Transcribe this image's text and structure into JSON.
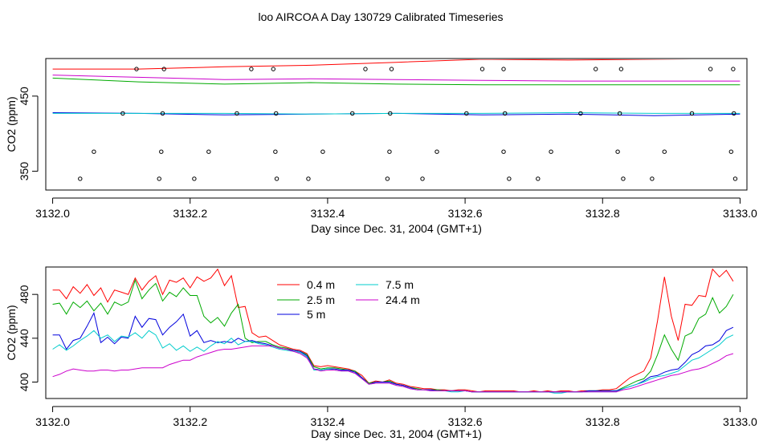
{
  "figure": {
    "title": "loo AIRCOA A  Day 130729  Calibrated Timeseries"
  },
  "chart_data": [
    {
      "type": "scatter",
      "xlabel": "Day since Dec. 31, 2004 (GMT+1)",
      "ylabel": "CO2 (ppm)",
      "xlim": [
        3131.99,
        3133.01
      ],
      "ylim": [
        325,
        500
      ],
      "xticks": [
        3132.0,
        3132.2,
        3132.4,
        3132.6,
        3132.8,
        3133.0
      ],
      "xtick_labels": [
        "3132.0",
        "3132.2",
        "3132.4",
        "3132.6",
        "3132.8",
        "3133.0"
      ],
      "yticks": [
        350,
        450
      ],
      "ytick_labels": [
        "350",
        "450"
      ],
      "x": [
        3132.0,
        3132.125,
        3132.25,
        3132.375,
        3132.5,
        3132.625,
        3132.75,
        3132.875,
        3133.0
      ],
      "series": [
        {
          "color": "#ff0000",
          "values": [
            486,
            486,
            489,
            491,
            495,
            499,
            498,
            499,
            500
          ]
        },
        {
          "color": "#00aa00",
          "values": [
            474,
            469,
            466,
            468,
            466,
            465,
            465,
            465,
            465
          ]
        },
        {
          "color": "#0000dd",
          "values": [
            428,
            427,
            425,
            426,
            427,
            425,
            426,
            424,
            426
          ]
        },
        {
          "color": "#00cccc",
          "values": [
            427,
            427,
            427,
            426,
            427,
            427,
            428,
            427,
            427
          ]
        },
        {
          "color": "#cc00cc",
          "values": [
            478,
            475,
            472,
            473,
            472,
            471,
            470,
            470,
            470
          ]
        }
      ],
      "points": [
        {
          "x": 3132.122,
          "y": 486
        },
        {
          "x": 3132.162,
          "y": 486
        },
        {
          "x": 3132.289,
          "y": 486
        },
        {
          "x": 3132.321,
          "y": 486
        },
        {
          "x": 3132.455,
          "y": 486
        },
        {
          "x": 3132.493,
          "y": 486
        },
        {
          "x": 3132.625,
          "y": 486
        },
        {
          "x": 3132.656,
          "y": 486
        },
        {
          "x": 3132.79,
          "y": 486
        },
        {
          "x": 3132.827,
          "y": 486
        },
        {
          "x": 3132.957,
          "y": 486
        },
        {
          "x": 3132.99,
          "y": 486
        },
        {
          "x": 3132.102,
          "y": 427
        },
        {
          "x": 3132.16,
          "y": 427
        },
        {
          "x": 3132.268,
          "y": 427
        },
        {
          "x": 3132.325,
          "y": 427
        },
        {
          "x": 3132.436,
          "y": 427
        },
        {
          "x": 3132.491,
          "y": 427
        },
        {
          "x": 3132.602,
          "y": 427
        },
        {
          "x": 3132.658,
          "y": 427
        },
        {
          "x": 3132.768,
          "y": 427
        },
        {
          "x": 3132.825,
          "y": 427
        },
        {
          "x": 3132.93,
          "y": 427
        },
        {
          "x": 3132.991,
          "y": 427
        },
        {
          "x": 3132.06,
          "y": 376
        },
        {
          "x": 3132.158,
          "y": 376
        },
        {
          "x": 3132.227,
          "y": 376
        },
        {
          "x": 3132.324,
          "y": 376
        },
        {
          "x": 3132.393,
          "y": 376
        },
        {
          "x": 3132.49,
          "y": 376
        },
        {
          "x": 3132.559,
          "y": 376
        },
        {
          "x": 3132.656,
          "y": 376
        },
        {
          "x": 3132.725,
          "y": 376
        },
        {
          "x": 3132.822,
          "y": 376
        },
        {
          "x": 3132.89,
          "y": 376
        },
        {
          "x": 3132.987,
          "y": 376
        },
        {
          "x": 3132.04,
          "y": 340
        },
        {
          "x": 3132.155,
          "y": 340
        },
        {
          "x": 3132.206,
          "y": 340
        },
        {
          "x": 3132.326,
          "y": 340
        },
        {
          "x": 3132.372,
          "y": 340
        },
        {
          "x": 3132.487,
          "y": 340
        },
        {
          "x": 3132.538,
          "y": 340
        },
        {
          "x": 3132.664,
          "y": 340
        },
        {
          "x": 3132.706,
          "y": 340
        },
        {
          "x": 3132.83,
          "y": 340
        },
        {
          "x": 3132.872,
          "y": 340
        },
        {
          "x": 3132.993,
          "y": 340
        }
      ]
    },
    {
      "type": "line",
      "xlabel": "Day since Dec. 31, 2004 (GMT+1)",
      "ylabel": "CO2 (ppm)",
      "xlim": [
        3131.99,
        3133.01
      ],
      "ylim": [
        385,
        505
      ],
      "xticks": [
        3132.0,
        3132.2,
        3132.4,
        3132.6,
        3132.8,
        3133.0
      ],
      "xtick_labels": [
        "3132.0",
        "3132.2",
        "3132.4",
        "3132.6",
        "3132.8",
        "3133.0"
      ],
      "yticks": [
        400,
        440,
        480
      ],
      "ytick_labels": [
        "400",
        "440",
        "480"
      ],
      "legend": {
        "placement": "top-center",
        "columns": 2
      },
      "x": [
        3132.0,
        3132.01,
        3132.02,
        3132.03,
        3132.04,
        3132.05,
        3132.06,
        3132.07,
        3132.08,
        3132.09,
        3132.1,
        3132.11,
        3132.12,
        3132.13,
        3132.14,
        3132.15,
        3132.16,
        3132.17,
        3132.18,
        3132.19,
        3132.2,
        3132.21,
        3132.22,
        3132.23,
        3132.24,
        3132.25,
        3132.26,
        3132.27,
        3132.28,
        3132.29,
        3132.3,
        3132.31,
        3132.32,
        3132.33,
        3132.34,
        3132.35,
        3132.36,
        3132.37,
        3132.38,
        3132.39,
        3132.4,
        3132.41,
        3132.42,
        3132.43,
        3132.44,
        3132.45,
        3132.46,
        3132.47,
        3132.48,
        3132.49,
        3132.5,
        3132.51,
        3132.52,
        3132.53,
        3132.54,
        3132.55,
        3132.56,
        3132.57,
        3132.58,
        3132.59,
        3132.6,
        3132.61,
        3132.62,
        3132.63,
        3132.64,
        3132.65,
        3132.66,
        3132.67,
        3132.68,
        3132.69,
        3132.7,
        3132.71,
        3132.72,
        3132.73,
        3132.74,
        3132.75,
        3132.76,
        3132.77,
        3132.78,
        3132.79,
        3132.8,
        3132.81,
        3132.82,
        3132.83,
        3132.84,
        3132.85,
        3132.86,
        3132.87,
        3132.88,
        3132.89,
        3132.9,
        3132.91,
        3132.92,
        3132.93,
        3132.94,
        3132.95,
        3132.96,
        3132.97,
        3132.98,
        3132.99
      ],
      "series": [
        {
          "name": "0.4 m",
          "color": "#ff0000",
          "values": [
            484,
            484,
            476,
            487,
            481,
            489,
            479,
            486,
            473,
            484,
            482,
            480,
            495,
            484,
            492,
            497,
            480,
            493,
            491,
            495,
            486,
            496,
            492,
            495,
            503,
            488,
            497,
            468,
            469,
            445,
            441,
            442,
            438,
            434,
            432,
            430,
            429,
            426,
            415,
            414,
            415,
            414,
            413,
            412,
            410,
            406,
            399,
            401,
            400,
            402,
            399,
            398,
            396,
            395,
            394,
            394,
            393,
            393,
            392,
            393,
            393,
            392,
            391,
            392,
            392,
            392,
            392,
            392,
            391,
            391,
            392,
            391,
            392,
            391,
            392,
            392,
            391,
            392,
            392,
            392,
            393,
            393,
            394,
            399,
            404,
            407,
            410,
            422,
            456,
            496,
            460,
            438,
            471,
            470,
            479,
            478,
            503,
            496,
            502,
            492
          ]
        },
        {
          "name": "2.5 m",
          "color": "#00aa00",
          "values": [
            471,
            472,
            462,
            473,
            468,
            474,
            465,
            472,
            462,
            473,
            470,
            473,
            493,
            476,
            484,
            490,
            474,
            482,
            478,
            486,
            479,
            479,
            460,
            454,
            459,
            451,
            463,
            471,
            440,
            436,
            437,
            437,
            434,
            432,
            431,
            429,
            428,
            425,
            414,
            412,
            413,
            413,
            412,
            411,
            410,
            404,
            399,
            400,
            400,
            401,
            398,
            397,
            395,
            394,
            393,
            393,
            393,
            392,
            392,
            392,
            392,
            391,
            391,
            391,
            391,
            391,
            391,
            391,
            391,
            391,
            391,
            391,
            391,
            391,
            391,
            391,
            391,
            391,
            392,
            392,
            392,
            392,
            392,
            395,
            398,
            401,
            403,
            410,
            425,
            443,
            430,
            420,
            442,
            445,
            458,
            462,
            477,
            463,
            469,
            480
          ]
        },
        {
          "name": "5 m",
          "color": "#0000dd",
          "values": [
            443,
            443,
            430,
            438,
            440,
            451,
            463,
            436,
            441,
            435,
            441,
            440,
            460,
            450,
            458,
            457,
            443,
            450,
            455,
            462,
            442,
            447,
            436,
            438,
            436,
            437,
            436,
            440,
            437,
            438,
            436,
            435,
            433,
            431,
            430,
            429,
            428,
            424,
            412,
            411,
            412,
            412,
            411,
            411,
            409,
            404,
            398,
            400,
            400,
            400,
            398,
            397,
            395,
            393,
            393,
            393,
            392,
            392,
            392,
            392,
            392,
            391,
            391,
            391,
            391,
            391,
            391,
            391,
            391,
            391,
            391,
            391,
            391,
            391,
            391,
            391,
            391,
            391,
            392,
            392,
            392,
            392,
            392,
            394,
            396,
            398,
            401,
            405,
            406,
            409,
            411,
            412,
            418,
            425,
            428,
            433,
            434,
            438,
            447,
            450
          ]
        },
        {
          "name": "7.5 m",
          "color": "#00cccc",
          "values": [
            430,
            434,
            429,
            433,
            438,
            442,
            447,
            440,
            443,
            437,
            442,
            441,
            445,
            440,
            447,
            443,
            431,
            435,
            429,
            433,
            428,
            432,
            428,
            433,
            437,
            435,
            440,
            434,
            437,
            437,
            435,
            434,
            432,
            430,
            429,
            428,
            427,
            423,
            411,
            411,
            412,
            411,
            410,
            410,
            408,
            403,
            398,
            399,
            399,
            399,
            397,
            396,
            394,
            393,
            393,
            392,
            392,
            392,
            391,
            391,
            392,
            391,
            391,
            391,
            391,
            391,
            391,
            391,
            391,
            391,
            391,
            391,
            391,
            390,
            390,
            391,
            391,
            391,
            391,
            391,
            391,
            391,
            391,
            394,
            396,
            398,
            400,
            403,
            405,
            406,
            408,
            410,
            415,
            420,
            422,
            426,
            430,
            434,
            440,
            443
          ]
        },
        {
          "name": "24.4 m",
          "color": "#cc00cc",
          "values": [
            405,
            407,
            410,
            412,
            411,
            410,
            410,
            411,
            411,
            410,
            411,
            411,
            412,
            413,
            413,
            413,
            413,
            416,
            418,
            420,
            420,
            423,
            425,
            427,
            429,
            430,
            430,
            431,
            432,
            433,
            433,
            433,
            433,
            431,
            430,
            428,
            426,
            422,
            412,
            410,
            411,
            411,
            410,
            410,
            408,
            403,
            398,
            399,
            399,
            399,
            397,
            396,
            394,
            393,
            393,
            392,
            392,
            392,
            392,
            392,
            392,
            391,
            391,
            391,
            391,
            391,
            391,
            391,
            391,
            391,
            391,
            391,
            391,
            391,
            391,
            391,
            391,
            391,
            391,
            391,
            391,
            391,
            391,
            393,
            394,
            396,
            398,
            400,
            402,
            404,
            406,
            407,
            409,
            411,
            412,
            414,
            417,
            420,
            424,
            426
          ]
        }
      ]
    }
  ]
}
